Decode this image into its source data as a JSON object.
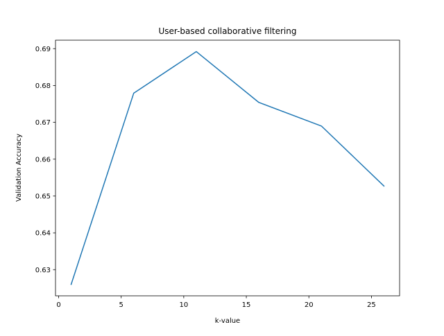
{
  "chart_data": {
    "type": "line",
    "title": "User-based collaborative filtering",
    "xlabel": "k-value",
    "ylabel": "Validation Accuracy",
    "xlim": [
      -0.25,
      27.25
    ],
    "ylim": [
      0.6229,
      0.6923
    ],
    "xticks": [
      0,
      5,
      10,
      15,
      20,
      25
    ],
    "xtick_labels": [
      "0",
      "5",
      "10",
      "15",
      "20",
      "25"
    ],
    "yticks": [
      0.63,
      0.64,
      0.65,
      0.66,
      0.67,
      0.68,
      0.69
    ],
    "ytick_labels": [
      "0.63",
      "0.64",
      "0.65",
      "0.66",
      "0.67",
      "0.68",
      "0.69"
    ],
    "grid": false,
    "series": [
      {
        "color": "#1f77b4",
        "x": [
          1,
          6,
          11,
          16,
          21,
          26
        ],
        "y": [
          0.626,
          0.6779,
          0.6892,
          0.6754,
          0.669,
          0.6527
        ]
      }
    ]
  }
}
